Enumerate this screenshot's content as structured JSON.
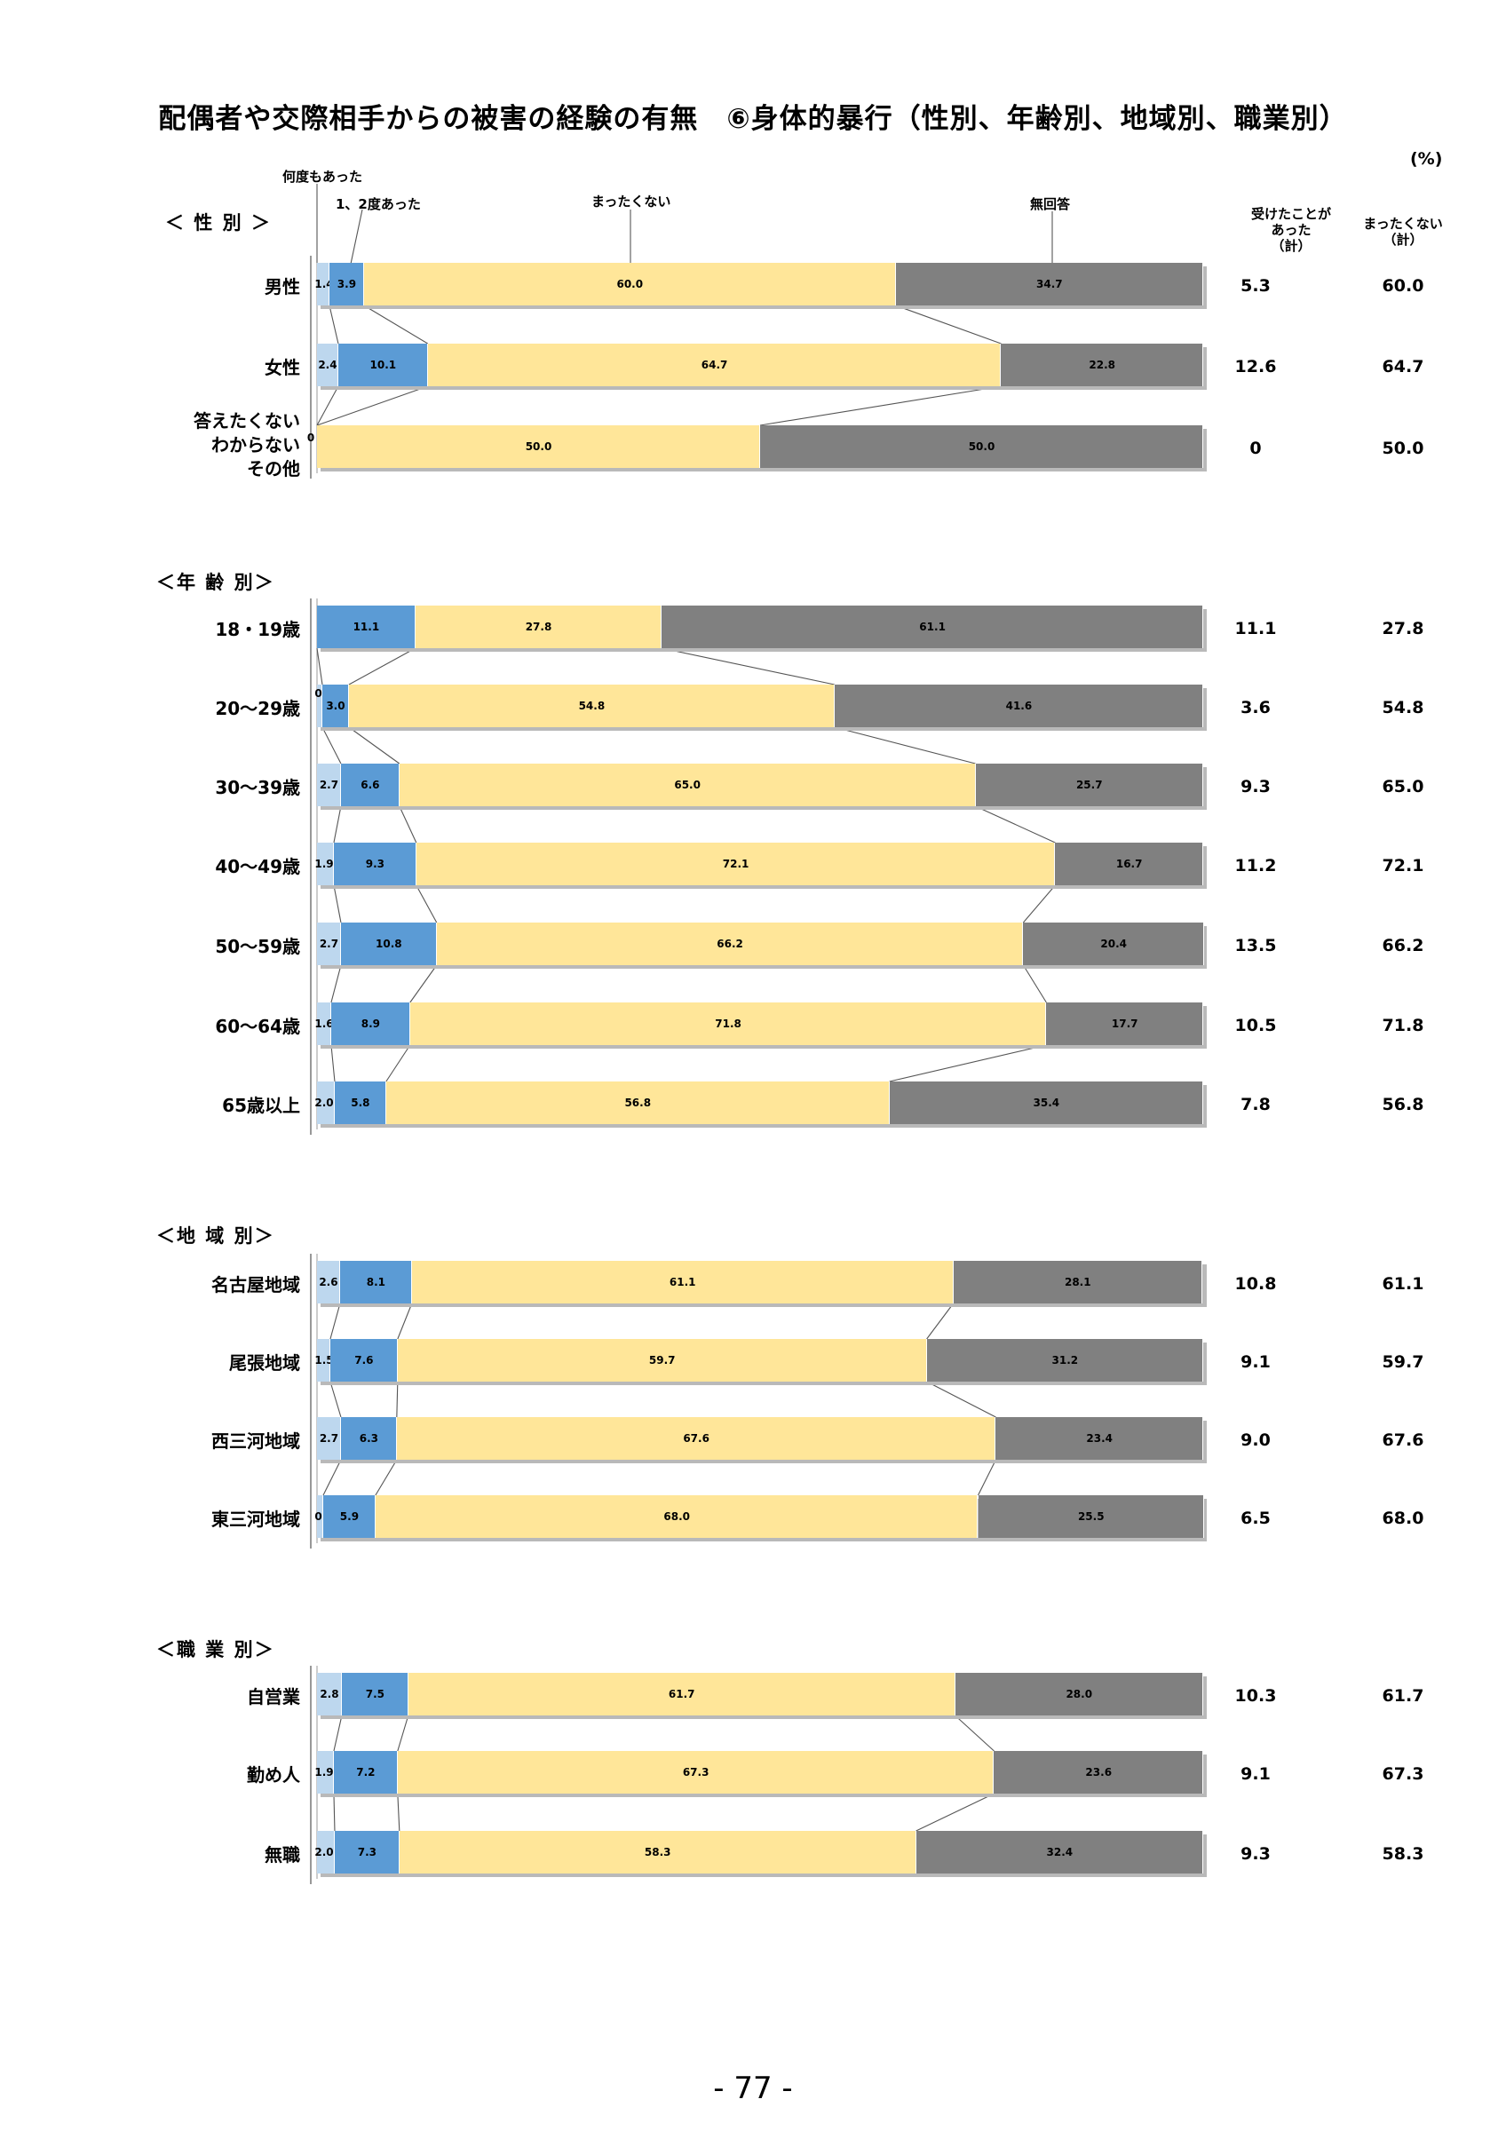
{
  "title": "配偶者や交際相手からの被害の経験の有無　⑥身体的暴行（性別、年齢別、地域別、職業別）",
  "unit": "(%)",
  "legend": {
    "many_times": "何度もあった",
    "once_twice": "1、2度あった",
    "never": "まったくない",
    "no_answer": "無回答"
  },
  "summary_headers": {
    "experienced": "受けたことが\nあった\n（計）",
    "never_total": "まったくない\n（計）"
  },
  "colors": {
    "many_times": "#bdd7ee",
    "once_twice": "#5b9bd5",
    "never": "#ffe699",
    "no_answer": "#808080"
  },
  "page_number": "- 77 -",
  "chart_data": {
    "type": "bar",
    "stacked": true,
    "orientation": "horizontal",
    "xlim": [
      0,
      100
    ],
    "series_names": [
      "何度もあった",
      "1、2度あった",
      "まったくない",
      "無回答"
    ],
    "groups": [
      {
        "name": "＜ 性 別 ＞",
        "rows": [
          {
            "label": "男性",
            "values": [
              1.4,
              3.9,
              60.0,
              34.7
            ],
            "experienced": "5.3",
            "never_total": "60.0"
          },
          {
            "label": "女性",
            "values": [
              2.4,
              10.1,
              64.7,
              22.8
            ],
            "experienced": "12.6",
            "never_total": "64.7"
          },
          {
            "label": "答えたくない\nわからない\nその他",
            "values": [
              0,
              0,
              50.0,
              50.0
            ],
            "experienced": "0",
            "never_total": "50.0"
          }
        ]
      },
      {
        "name": "＜年 齢 別＞",
        "rows": [
          {
            "label": "18・19歳",
            "values": [
              0,
              11.1,
              27.8,
              61.1
            ],
            "experienced": "11.1",
            "never_total": "27.8"
          },
          {
            "label": "20～29歳",
            "values": [
              0.6,
              3.0,
              54.8,
              41.6
            ],
            "experienced": "3.6",
            "never_total": "54.8"
          },
          {
            "label": "30～39歳",
            "values": [
              2.7,
              6.6,
              65.0,
              25.7
            ],
            "experienced": "9.3",
            "never_total": "65.0"
          },
          {
            "label": "40～49歳",
            "values": [
              1.9,
              9.3,
              72.1,
              16.7
            ],
            "experienced": "11.2",
            "never_total": "72.1"
          },
          {
            "label": "50～59歳",
            "values": [
              2.7,
              10.8,
              66.2,
              20.4
            ],
            "experienced": "13.5",
            "never_total": "66.2"
          },
          {
            "label": "60～64歳",
            "values": [
              1.6,
              8.9,
              71.8,
              17.7
            ],
            "experienced": "10.5",
            "never_total": "71.8"
          },
          {
            "label": "65歳以上",
            "values": [
              2.0,
              5.8,
              56.8,
              35.4
            ],
            "experienced": "7.8",
            "never_total": "56.8"
          }
        ]
      },
      {
        "name": "＜地 域 別＞",
        "rows": [
          {
            "label": "名古屋地域",
            "values": [
              2.6,
              8.1,
              61.1,
              28.1
            ],
            "experienced": "10.8",
            "never_total": "61.1"
          },
          {
            "label": "尾張地域",
            "values": [
              1.5,
              7.6,
              59.7,
              31.2
            ],
            "experienced": "9.1",
            "never_total": "59.7"
          },
          {
            "label": "西三河地域",
            "values": [
              2.7,
              6.3,
              67.6,
              23.4
            ],
            "experienced": "9.0",
            "never_total": "67.6"
          },
          {
            "label": "東三河地域",
            "values": [
              0.7,
              5.9,
              68.0,
              25.5
            ],
            "experienced": "6.5",
            "never_total": "68.0"
          }
        ]
      },
      {
        "name": "＜職 業 別＞",
        "rows": [
          {
            "label": "自営業",
            "values": [
              2.8,
              7.5,
              61.7,
              28.0
            ],
            "experienced": "10.3",
            "never_total": "61.7"
          },
          {
            "label": "勤め人",
            "values": [
              1.9,
              7.2,
              67.3,
              23.6
            ],
            "experienced": "9.1",
            "never_total": "67.3"
          },
          {
            "label": "無職",
            "values": [
              2.0,
              7.3,
              58.3,
              32.4
            ],
            "experienced": "9.3",
            "never_total": "58.3"
          }
        ]
      }
    ]
  }
}
